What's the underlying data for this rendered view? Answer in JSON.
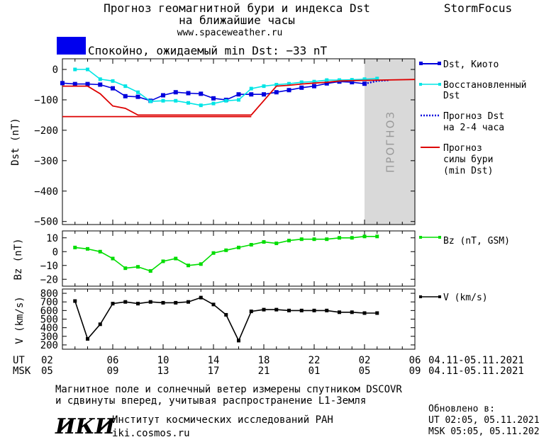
{
  "header": {
    "title_line1": "Прогноз геомагнитной бури и индекса Dst",
    "title_line2": "на ближайшие часы",
    "url": "www.spaceweather.ru",
    "brand": "StormFocus",
    "status_text": "Спокойно, ожидаемый min Dst: −33 nT",
    "status_color": "#0000ee"
  },
  "forecast_zone_label": "ПРОГНОЗ",
  "colors": {
    "dst_kyoto": "#0000dd",
    "dst_restored": "#00e5e5",
    "dst_forecast": "#0000dd",
    "storm_forecast": "#dd0000",
    "bz": "#00dd00",
    "v": "#000000",
    "forecast_zone": "#d9d9d9"
  },
  "legend": {
    "dst_kyoto": "Dst, Киото",
    "dst_restored_1": "Восстановленный",
    "dst_restored_2": "Dst",
    "dst_forecast_1": "Прогноз Dst",
    "dst_forecast_2": "на 2-4 часа",
    "storm_1": "Прогноз",
    "storm_2": "силы бури",
    "storm_3": "(min Dst)",
    "bz": "Bz (nT, GSM)",
    "v": "V (km/s)"
  },
  "time_axis": {
    "ut_label": "UT",
    "msk_label": "MSK",
    "ut_ticks": [
      "02",
      "06",
      "10",
      "14",
      "18",
      "22",
      "02",
      "06"
    ],
    "msk_ticks": [
      "05",
      "09",
      "13",
      "17",
      "21",
      "01",
      "05",
      "09"
    ],
    "ut_dates": "04.11-05.11.2021",
    "msk_dates": "04.11-05.11.2021"
  },
  "footer": {
    "note_line1": "Магнитное поле и солнечный ветер измерены спутником DSCOVR",
    "note_line2": "и сдвинуты вперед, учитывая распространение L1-Земля",
    "logo_text": "ИКИ",
    "institute": "Институт космических исследований РАН",
    "institute_url": "iki.cosmos.ru",
    "updated_label": "Обновлено в:",
    "updated_ut": "UT  02:05, 05.11.2021",
    "updated_msk": "MSK 05:05, 05.11.2021"
  },
  "chart_data": [
    {
      "type": "line",
      "ylabel": "Dst (nT)",
      "ylim": [
        -510,
        35
      ],
      "yticks": [
        0,
        -100,
        -200,
        -300,
        -400,
        -500
      ],
      "x_unit": "hours (UT), 04.11 02:00 → 05.11 06:00",
      "xlim": [
        2,
        30
      ],
      "forecast_zone": [
        26,
        30
      ],
      "series": [
        {
          "name": "Dst, Киото",
          "marker": "square",
          "x": [
            2,
            3,
            4,
            5,
            6,
            7,
            8,
            9,
            10,
            11,
            12,
            13,
            14,
            15,
            16,
            17,
            18,
            19,
            20,
            21,
            22,
            23,
            24,
            25,
            26
          ],
          "y": [
            -45,
            -48,
            -48,
            -50,
            -62,
            -88,
            -90,
            -103,
            -85,
            -75,
            -78,
            -80,
            -95,
            -100,
            -82,
            -82,
            -82,
            -75,
            -68,
            -60,
            -55,
            -46,
            -40,
            -42,
            -47
          ]
        },
        {
          "name": "Восстановленный Dst",
          "marker": "square",
          "x": [
            3,
            4,
            5,
            6,
            7,
            8,
            9,
            10,
            11,
            12,
            13,
            14,
            15,
            16,
            17,
            18,
            19,
            20,
            21,
            22,
            23,
            24,
            25,
            26,
            27
          ],
          "y": [
            0,
            0,
            -32,
            -38,
            -55,
            -75,
            -105,
            -103,
            -103,
            -110,
            -118,
            -112,
            -103,
            -100,
            -63,
            -55,
            -50,
            -47,
            -42,
            -40,
            -35,
            -35,
            -34,
            -32,
            -30
          ]
        },
        {
          "name": "Прогноз Dst на 2-4 часа",
          "style": "dotted",
          "x": [
            26,
            27,
            28
          ],
          "y": [
            -47,
            -38,
            -35
          ]
        },
        {
          "name": "Прогноз силы бури (min Dst)",
          "style": "step",
          "x": [
            2,
            4,
            5,
            6,
            7,
            8,
            17,
            19,
            20,
            21,
            22,
            23,
            24,
            25,
            26,
            30
          ],
          "y": [
            -55,
            -55,
            -80,
            -120,
            -128,
            -150,
            -150,
            -55,
            -52,
            -48,
            -45,
            -42,
            -38,
            -37,
            -36,
            -33
          ]
        },
        {
          "name": "Прогноз силы бури (min Dst)",
          "style": "baseline",
          "x": [
            2,
            17
          ],
          "y": [
            -155,
            -155
          ]
        }
      ]
    },
    {
      "type": "line",
      "ylabel": "Bz (nT)",
      "ylim": [
        -25,
        15
      ],
      "yticks": [
        10,
        0,
        -10,
        -20
      ],
      "series": [
        {
          "name": "Bz (nT, GSM)",
          "marker": "square",
          "x": [
            3,
            4,
            5,
            6,
            7,
            8,
            9,
            10,
            11,
            12,
            13,
            14,
            15,
            16,
            17,
            18,
            19,
            20,
            21,
            22,
            23,
            24,
            25,
            26,
            27
          ],
          "y": [
            3,
            2,
            0,
            -5,
            -12,
            -11,
            -14,
            -7,
            -5,
            -10,
            -9,
            -1,
            1,
            3,
            5,
            7,
            6,
            8,
            9,
            9,
            9,
            10,
            10,
            11,
            11
          ]
        }
      ]
    },
    {
      "type": "line",
      "ylabel": "V (km/s)",
      "ylim": [
        150,
        850
      ],
      "yticks": [
        800,
        700,
        600,
        500,
        400,
        300,
        200
      ],
      "series": [
        {
          "name": "V (km/s)",
          "marker": "square",
          "x": [
            3,
            4,
            5,
            6,
            7,
            8,
            9,
            10,
            11,
            12,
            13,
            14,
            15,
            16,
            17,
            18,
            19,
            20,
            21,
            22,
            23,
            24,
            25,
            26,
            27
          ],
          "y": [
            710,
            270,
            440,
            680,
            700,
            680,
            700,
            690,
            690,
            700,
            750,
            670,
            550,
            250,
            590,
            610,
            610,
            600,
            600,
            600,
            600,
            580,
            580,
            570,
            570
          ]
        }
      ]
    }
  ]
}
